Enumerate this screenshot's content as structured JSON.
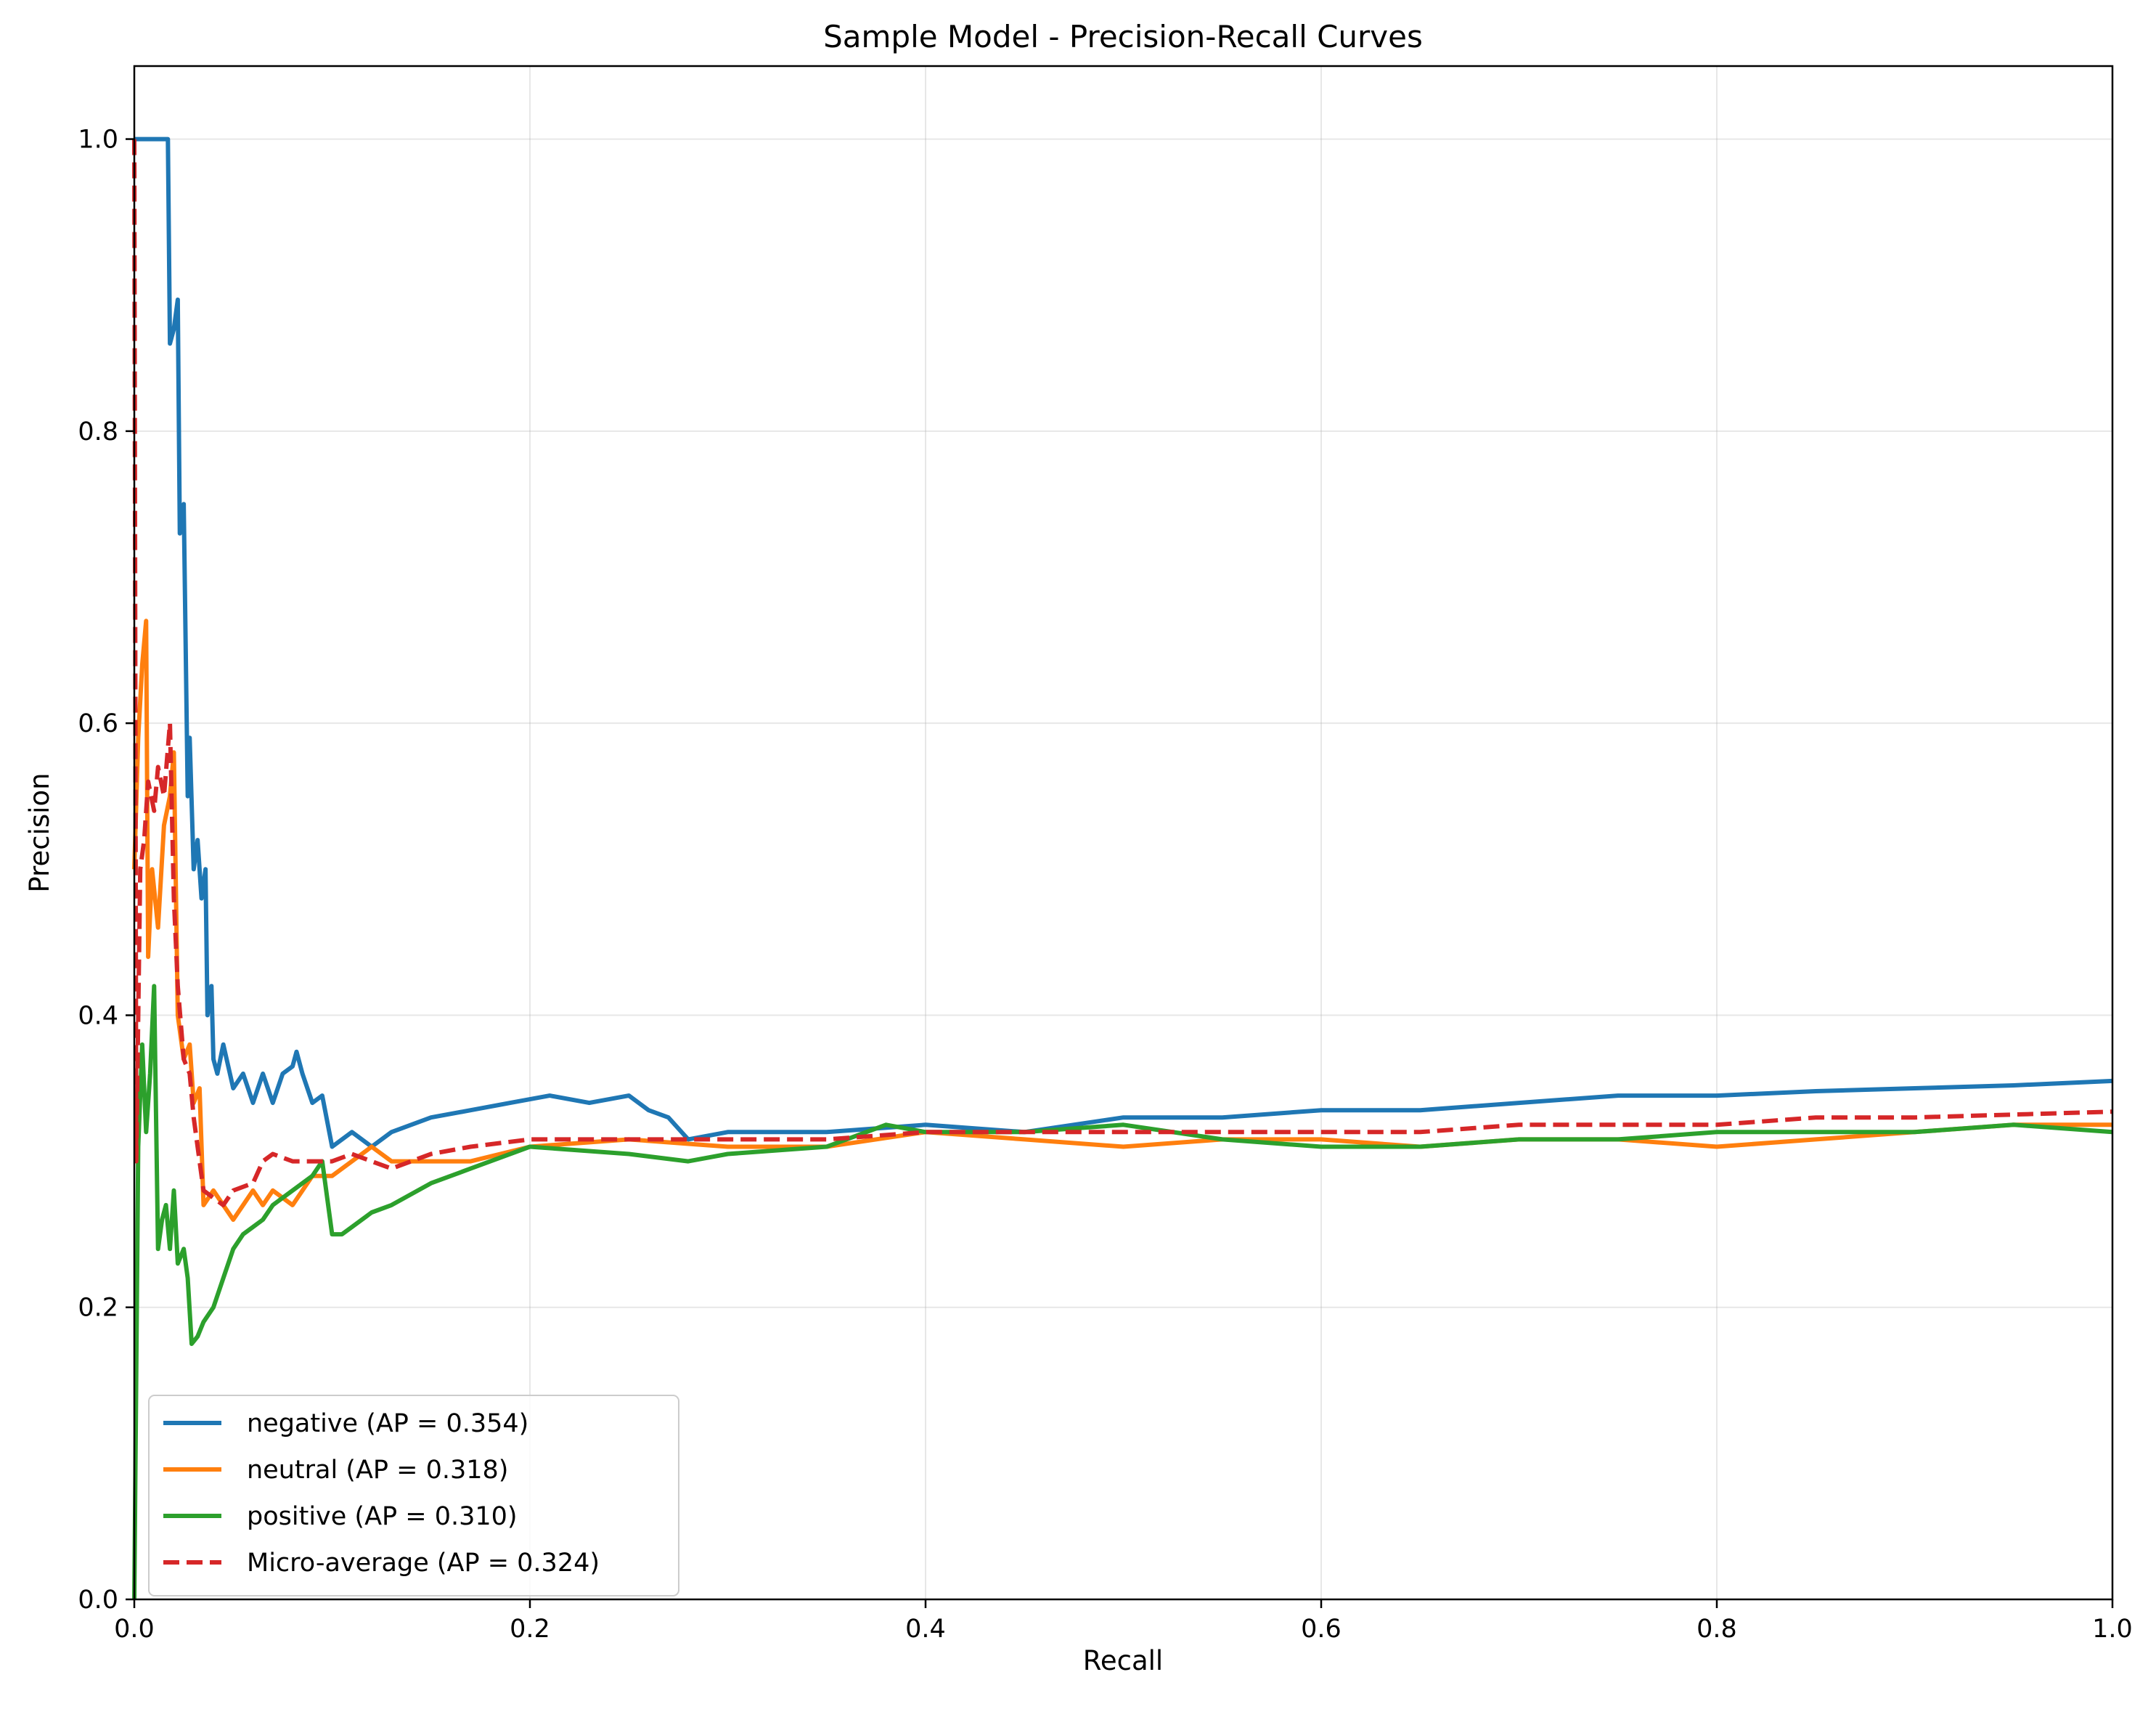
{
  "chart_data": {
    "type": "line",
    "title": "Sample Model - Precision-Recall Curves",
    "xlabel": "Recall",
    "ylabel": "Precision",
    "xlim": [
      0.0,
      1.0
    ],
    "ylim": [
      0.0,
      1.05
    ],
    "xticks": [
      "0.0",
      "0.2",
      "0.4",
      "0.6",
      "0.8",
      "1.0"
    ],
    "yticks": [
      "0.0",
      "0.2",
      "0.4",
      "0.6",
      "0.8",
      "1.0"
    ],
    "grid": true,
    "legend": "lower-left",
    "series": [
      {
        "name": "negative (AP = 0.354)",
        "color": "#1f77b4",
        "dash": "solid",
        "points": [
          [
            0.0,
            1.0
          ],
          [
            0.017,
            1.0
          ],
          [
            0.018,
            0.86
          ],
          [
            0.02,
            0.87
          ],
          [
            0.022,
            0.89
          ],
          [
            0.023,
            0.73
          ],
          [
            0.025,
            0.75
          ],
          [
            0.027,
            0.55
          ],
          [
            0.028,
            0.59
          ],
          [
            0.03,
            0.5
          ],
          [
            0.032,
            0.52
          ],
          [
            0.034,
            0.48
          ],
          [
            0.036,
            0.5
          ],
          [
            0.037,
            0.4
          ],
          [
            0.039,
            0.42
          ],
          [
            0.04,
            0.37
          ],
          [
            0.042,
            0.36
          ],
          [
            0.045,
            0.38
          ],
          [
            0.05,
            0.35
          ],
          [
            0.055,
            0.36
          ],
          [
            0.06,
            0.34
          ],
          [
            0.065,
            0.36
          ],
          [
            0.07,
            0.34
          ],
          [
            0.075,
            0.36
          ],
          [
            0.08,
            0.365
          ],
          [
            0.082,
            0.375
          ],
          [
            0.085,
            0.36
          ],
          [
            0.09,
            0.34
          ],
          [
            0.095,
            0.345
          ],
          [
            0.1,
            0.31
          ],
          [
            0.11,
            0.32
          ],
          [
            0.12,
            0.31
          ],
          [
            0.13,
            0.32
          ],
          [
            0.15,
            0.33
          ],
          [
            0.17,
            0.335
          ],
          [
            0.19,
            0.34
          ],
          [
            0.21,
            0.345
          ],
          [
            0.23,
            0.34
          ],
          [
            0.25,
            0.345
          ],
          [
            0.26,
            0.335
          ],
          [
            0.27,
            0.33
          ],
          [
            0.28,
            0.315
          ],
          [
            0.3,
            0.32
          ],
          [
            0.35,
            0.32
          ],
          [
            0.4,
            0.325
          ],
          [
            0.45,
            0.32
          ],
          [
            0.5,
            0.33
          ],
          [
            0.55,
            0.33
          ],
          [
            0.6,
            0.335
          ],
          [
            0.65,
            0.335
          ],
          [
            0.7,
            0.34
          ],
          [
            0.75,
            0.345
          ],
          [
            0.8,
            0.345
          ],
          [
            0.85,
            0.348
          ],
          [
            0.9,
            0.35
          ],
          [
            0.95,
            0.352
          ],
          [
            1.0,
            0.355
          ]
        ]
      },
      {
        "name": "neutral (AP = 0.318)",
        "color": "#ff7f0e",
        "dash": "solid",
        "points": [
          [
            0.0,
            0.5
          ],
          [
            0.002,
            0.59
          ],
          [
            0.004,
            0.64
          ],
          [
            0.006,
            0.67
          ],
          [
            0.007,
            0.44
          ],
          [
            0.009,
            0.5
          ],
          [
            0.012,
            0.46
          ],
          [
            0.015,
            0.53
          ],
          [
            0.018,
            0.55
          ],
          [
            0.02,
            0.58
          ],
          [
            0.022,
            0.4
          ],
          [
            0.025,
            0.37
          ],
          [
            0.028,
            0.38
          ],
          [
            0.03,
            0.34
          ],
          [
            0.033,
            0.35
          ],
          [
            0.035,
            0.27
          ],
          [
            0.04,
            0.28
          ],
          [
            0.045,
            0.27
          ],
          [
            0.05,
            0.26
          ],
          [
            0.055,
            0.27
          ],
          [
            0.06,
            0.28
          ],
          [
            0.065,
            0.27
          ],
          [
            0.07,
            0.28
          ],
          [
            0.08,
            0.27
          ],
          [
            0.09,
            0.29
          ],
          [
            0.1,
            0.29
          ],
          [
            0.11,
            0.3
          ],
          [
            0.12,
            0.31
          ],
          [
            0.13,
            0.3
          ],
          [
            0.15,
            0.3
          ],
          [
            0.17,
            0.3
          ],
          [
            0.2,
            0.31
          ],
          [
            0.25,
            0.315
          ],
          [
            0.3,
            0.31
          ],
          [
            0.35,
            0.31
          ],
          [
            0.4,
            0.32
          ],
          [
            0.45,
            0.315
          ],
          [
            0.5,
            0.31
          ],
          [
            0.55,
            0.315
          ],
          [
            0.6,
            0.315
          ],
          [
            0.65,
            0.31
          ],
          [
            0.7,
            0.315
          ],
          [
            0.75,
            0.315
          ],
          [
            0.8,
            0.31
          ],
          [
            0.85,
            0.315
          ],
          [
            0.9,
            0.32
          ],
          [
            0.95,
            0.325
          ],
          [
            1.0,
            0.325
          ]
        ]
      },
      {
        "name": "positive (AP = 0.310)",
        "color": "#2ca02c",
        "dash": "solid",
        "points": [
          [
            0.0,
            0.0
          ],
          [
            0.002,
            0.31
          ],
          [
            0.004,
            0.38
          ],
          [
            0.006,
            0.32
          ],
          [
            0.008,
            0.36
          ],
          [
            0.01,
            0.42
          ],
          [
            0.012,
            0.24
          ],
          [
            0.014,
            0.26
          ],
          [
            0.016,
            0.27
          ],
          [
            0.018,
            0.24
          ],
          [
            0.02,
            0.28
          ],
          [
            0.022,
            0.23
          ],
          [
            0.025,
            0.24
          ],
          [
            0.027,
            0.22
          ],
          [
            0.029,
            0.175
          ],
          [
            0.032,
            0.18
          ],
          [
            0.035,
            0.19
          ],
          [
            0.04,
            0.2
          ],
          [
            0.045,
            0.22
          ],
          [
            0.05,
            0.24
          ],
          [
            0.055,
            0.25
          ],
          [
            0.06,
            0.255
          ],
          [
            0.065,
            0.26
          ],
          [
            0.07,
            0.27
          ],
          [
            0.08,
            0.28
          ],
          [
            0.09,
            0.29
          ],
          [
            0.095,
            0.3
          ],
          [
            0.1,
            0.25
          ],
          [
            0.105,
            0.25
          ],
          [
            0.11,
            0.255
          ],
          [
            0.12,
            0.265
          ],
          [
            0.13,
            0.27
          ],
          [
            0.15,
            0.285
          ],
          [
            0.17,
            0.295
          ],
          [
            0.2,
            0.31
          ],
          [
            0.25,
            0.305
          ],
          [
            0.28,
            0.3
          ],
          [
            0.3,
            0.305
          ],
          [
            0.35,
            0.31
          ],
          [
            0.38,
            0.325
          ],
          [
            0.4,
            0.32
          ],
          [
            0.45,
            0.32
          ],
          [
            0.5,
            0.325
          ],
          [
            0.55,
            0.315
          ],
          [
            0.6,
            0.31
          ],
          [
            0.65,
            0.31
          ],
          [
            0.7,
            0.315
          ],
          [
            0.75,
            0.315
          ],
          [
            0.8,
            0.32
          ],
          [
            0.85,
            0.32
          ],
          [
            0.9,
            0.32
          ],
          [
            0.95,
            0.325
          ],
          [
            1.0,
            0.32
          ]
        ]
      },
      {
        "name": "Micro-average (AP = 0.324)",
        "color": "#d62728",
        "dash": "dashed",
        "points": [
          [
            0.0,
            1.0
          ],
          [
            0.001,
            0.3
          ],
          [
            0.003,
            0.5
          ],
          [
            0.005,
            0.52
          ],
          [
            0.007,
            0.56
          ],
          [
            0.01,
            0.54
          ],
          [
            0.012,
            0.57
          ],
          [
            0.015,
            0.55
          ],
          [
            0.018,
            0.6
          ],
          [
            0.02,
            0.48
          ],
          [
            0.022,
            0.42
          ],
          [
            0.025,
            0.37
          ],
          [
            0.028,
            0.36
          ],
          [
            0.03,
            0.33
          ],
          [
            0.033,
            0.3
          ],
          [
            0.035,
            0.28
          ],
          [
            0.04,
            0.275
          ],
          [
            0.045,
            0.27
          ],
          [
            0.05,
            0.28
          ],
          [
            0.06,
            0.285
          ],
          [
            0.065,
            0.3
          ],
          [
            0.07,
            0.305
          ],
          [
            0.08,
            0.3
          ],
          [
            0.09,
            0.3
          ],
          [
            0.1,
            0.3
          ],
          [
            0.11,
            0.305
          ],
          [
            0.12,
            0.3
          ],
          [
            0.13,
            0.295
          ],
          [
            0.15,
            0.305
          ],
          [
            0.17,
            0.31
          ],
          [
            0.2,
            0.315
          ],
          [
            0.25,
            0.315
          ],
          [
            0.3,
            0.315
          ],
          [
            0.35,
            0.315
          ],
          [
            0.4,
            0.32
          ],
          [
            0.45,
            0.32
          ],
          [
            0.5,
            0.32
          ],
          [
            0.55,
            0.32
          ],
          [
            0.6,
            0.32
          ],
          [
            0.65,
            0.32
          ],
          [
            0.7,
            0.325
          ],
          [
            0.75,
            0.325
          ],
          [
            0.8,
            0.325
          ],
          [
            0.85,
            0.33
          ],
          [
            0.9,
            0.33
          ],
          [
            0.95,
            0.332
          ],
          [
            1.0,
            0.334
          ]
        ]
      }
    ]
  }
}
